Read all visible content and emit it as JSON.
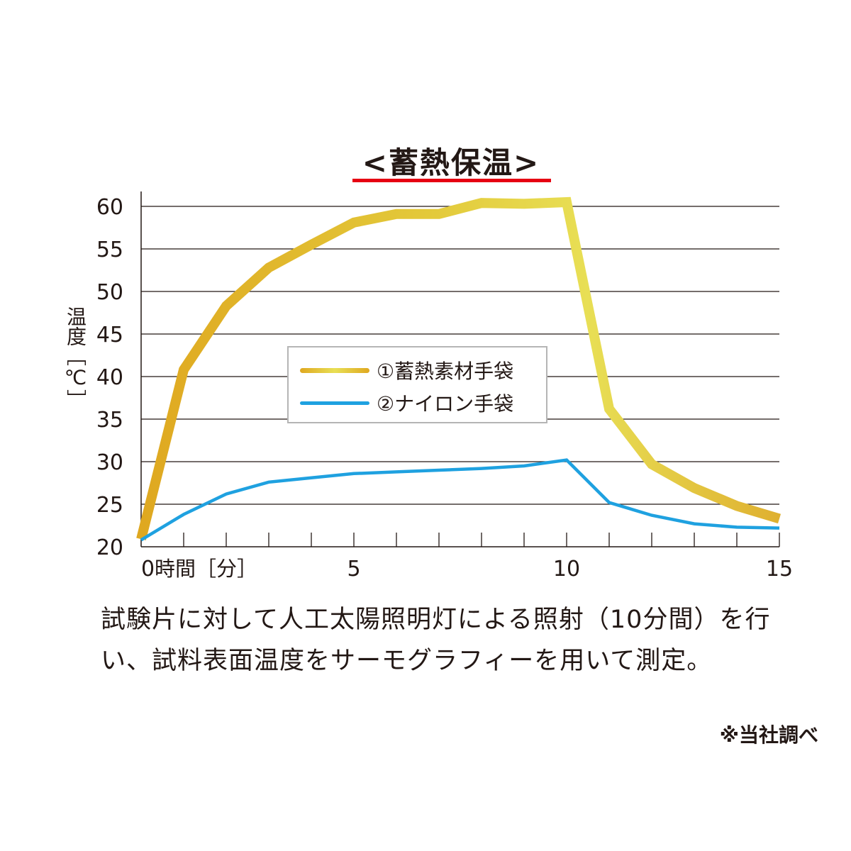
{
  "chart_data": {
    "type": "line",
    "title": "<蓄熱保温>",
    "ylabel": "温度［℃］",
    "xlabel": "時間［分］",
    "x": [
      0,
      1,
      2,
      3,
      4,
      5,
      6,
      7,
      8,
      9,
      10,
      11,
      12,
      13,
      14,
      15
    ],
    "xlim": [
      0,
      15
    ],
    "ylim": [
      20,
      60
    ],
    "x_tick_labels": [
      {
        "value": 0,
        "label": "0"
      },
      {
        "value": 5,
        "label": "5"
      },
      {
        "value": 10,
        "label": "10"
      },
      {
        "value": 15,
        "label": "15"
      }
    ],
    "y_ticks": [
      20,
      25,
      30,
      35,
      40,
      45,
      50,
      55,
      60
    ],
    "grid": "horizontal",
    "legend_position": "center",
    "series": [
      {
        "name": "①蓄熱素材手袋",
        "color": "#dfa820",
        "color_end": "#e8df55",
        "values": [
          20.9,
          40.8,
          48.3,
          52.8,
          55.5,
          58.1,
          59.1,
          59.1,
          60.4,
          60.3,
          60.5,
          36.2,
          29.7,
          26.9,
          24.8,
          23.3
        ]
      },
      {
        "name": "②ナイロン手袋",
        "color": "#1fa1e0",
        "values": [
          20.8,
          23.8,
          26.2,
          27.6,
          28.1,
          28.6,
          28.8,
          29.0,
          29.2,
          29.5,
          30.2,
          25.2,
          23.7,
          22.7,
          22.3,
          22.2
        ]
      }
    ]
  },
  "caption": "試験片に対して人工太陽照明灯による照射（10分間）を行い、試料表面温度をサーモグラフィーを用いて測定。",
  "note": "※当社調べ",
  "colors": {
    "title_underline": "#e60012",
    "grid": "#231815"
  }
}
